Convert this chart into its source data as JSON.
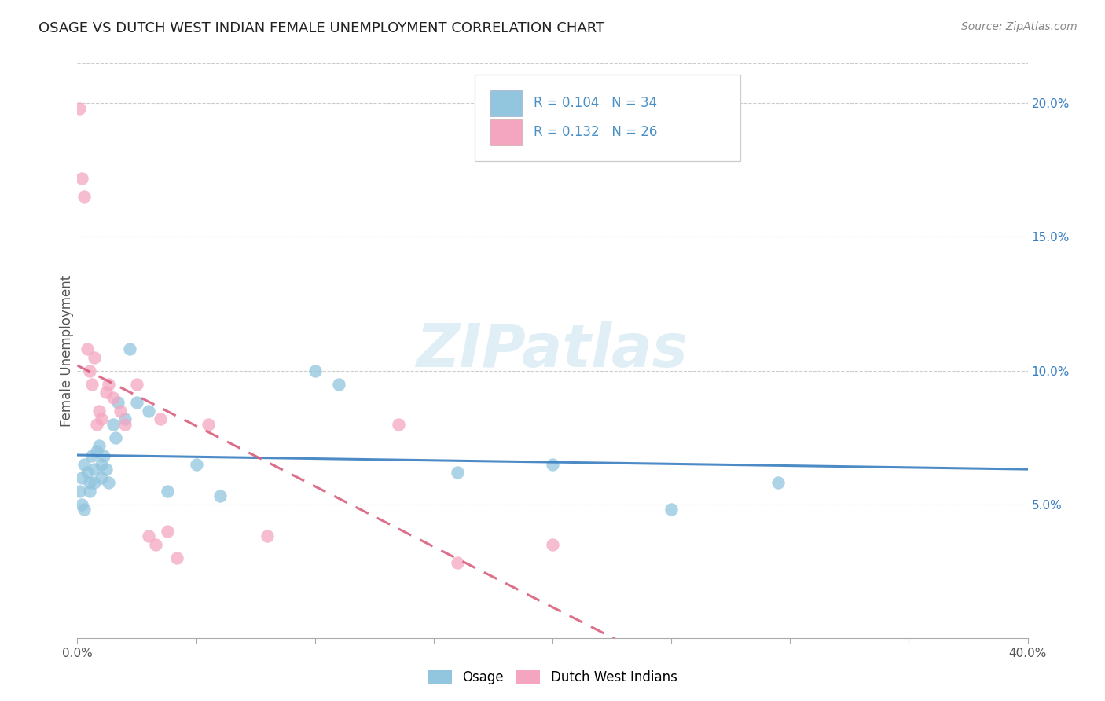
{
  "title": "OSAGE VS DUTCH WEST INDIAN FEMALE UNEMPLOYMENT CORRELATION CHART",
  "source": "Source: ZipAtlas.com",
  "ylabel": "Female Unemployment",
  "right_yticks": [
    "20.0%",
    "15.0%",
    "10.0%",
    "5.0%"
  ],
  "right_ytick_vals": [
    0.2,
    0.15,
    0.1,
    0.05
  ],
  "osage_color": "#92c5de",
  "dutch_color": "#f4a6c0",
  "osage_line_color": "#3a7fc1",
  "dutch_line_color": "#d9607e",
  "legend_R_osage": "0.104",
  "legend_N_osage": "34",
  "legend_R_dutch": "0.132",
  "legend_N_dutch": "26",
  "legend_color": "#4a90c4",
  "watermark": "ZIPatlas",
  "osage_x": [
    0.001,
    0.002,
    0.002,
    0.003,
    0.003,
    0.004,
    0.005,
    0.005,
    0.006,
    0.007,
    0.007,
    0.008,
    0.009,
    0.01,
    0.01,
    0.011,
    0.012,
    0.013,
    0.015,
    0.016,
    0.017,
    0.02,
    0.022,
    0.025,
    0.03,
    0.038,
    0.05,
    0.06,
    0.1,
    0.11,
    0.16,
    0.2,
    0.25,
    0.295
  ],
  "osage_y": [
    0.055,
    0.06,
    0.05,
    0.065,
    0.048,
    0.062,
    0.058,
    0.055,
    0.068,
    0.063,
    0.058,
    0.07,
    0.072,
    0.065,
    0.06,
    0.068,
    0.063,
    0.058,
    0.08,
    0.075,
    0.088,
    0.082,
    0.108,
    0.088,
    0.085,
    0.055,
    0.065,
    0.053,
    0.1,
    0.095,
    0.062,
    0.065,
    0.048,
    0.058
  ],
  "dutch_x": [
    0.001,
    0.002,
    0.003,
    0.004,
    0.005,
    0.006,
    0.007,
    0.008,
    0.009,
    0.01,
    0.012,
    0.013,
    0.015,
    0.018,
    0.02,
    0.025,
    0.03,
    0.033,
    0.035,
    0.038,
    0.042,
    0.055,
    0.08,
    0.135,
    0.16,
    0.2
  ],
  "dutch_y": [
    0.198,
    0.172,
    0.165,
    0.108,
    0.1,
    0.095,
    0.105,
    0.08,
    0.085,
    0.082,
    0.092,
    0.095,
    0.09,
    0.085,
    0.08,
    0.095,
    0.038,
    0.035,
    0.082,
    0.04,
    0.03,
    0.08,
    0.038,
    0.08,
    0.028,
    0.035
  ],
  "xmin": 0.0,
  "xmax": 0.4,
  "ymin": 0.0,
  "ymax": 0.215,
  "figsize": [
    14.06,
    8.92
  ],
  "dpi": 100
}
